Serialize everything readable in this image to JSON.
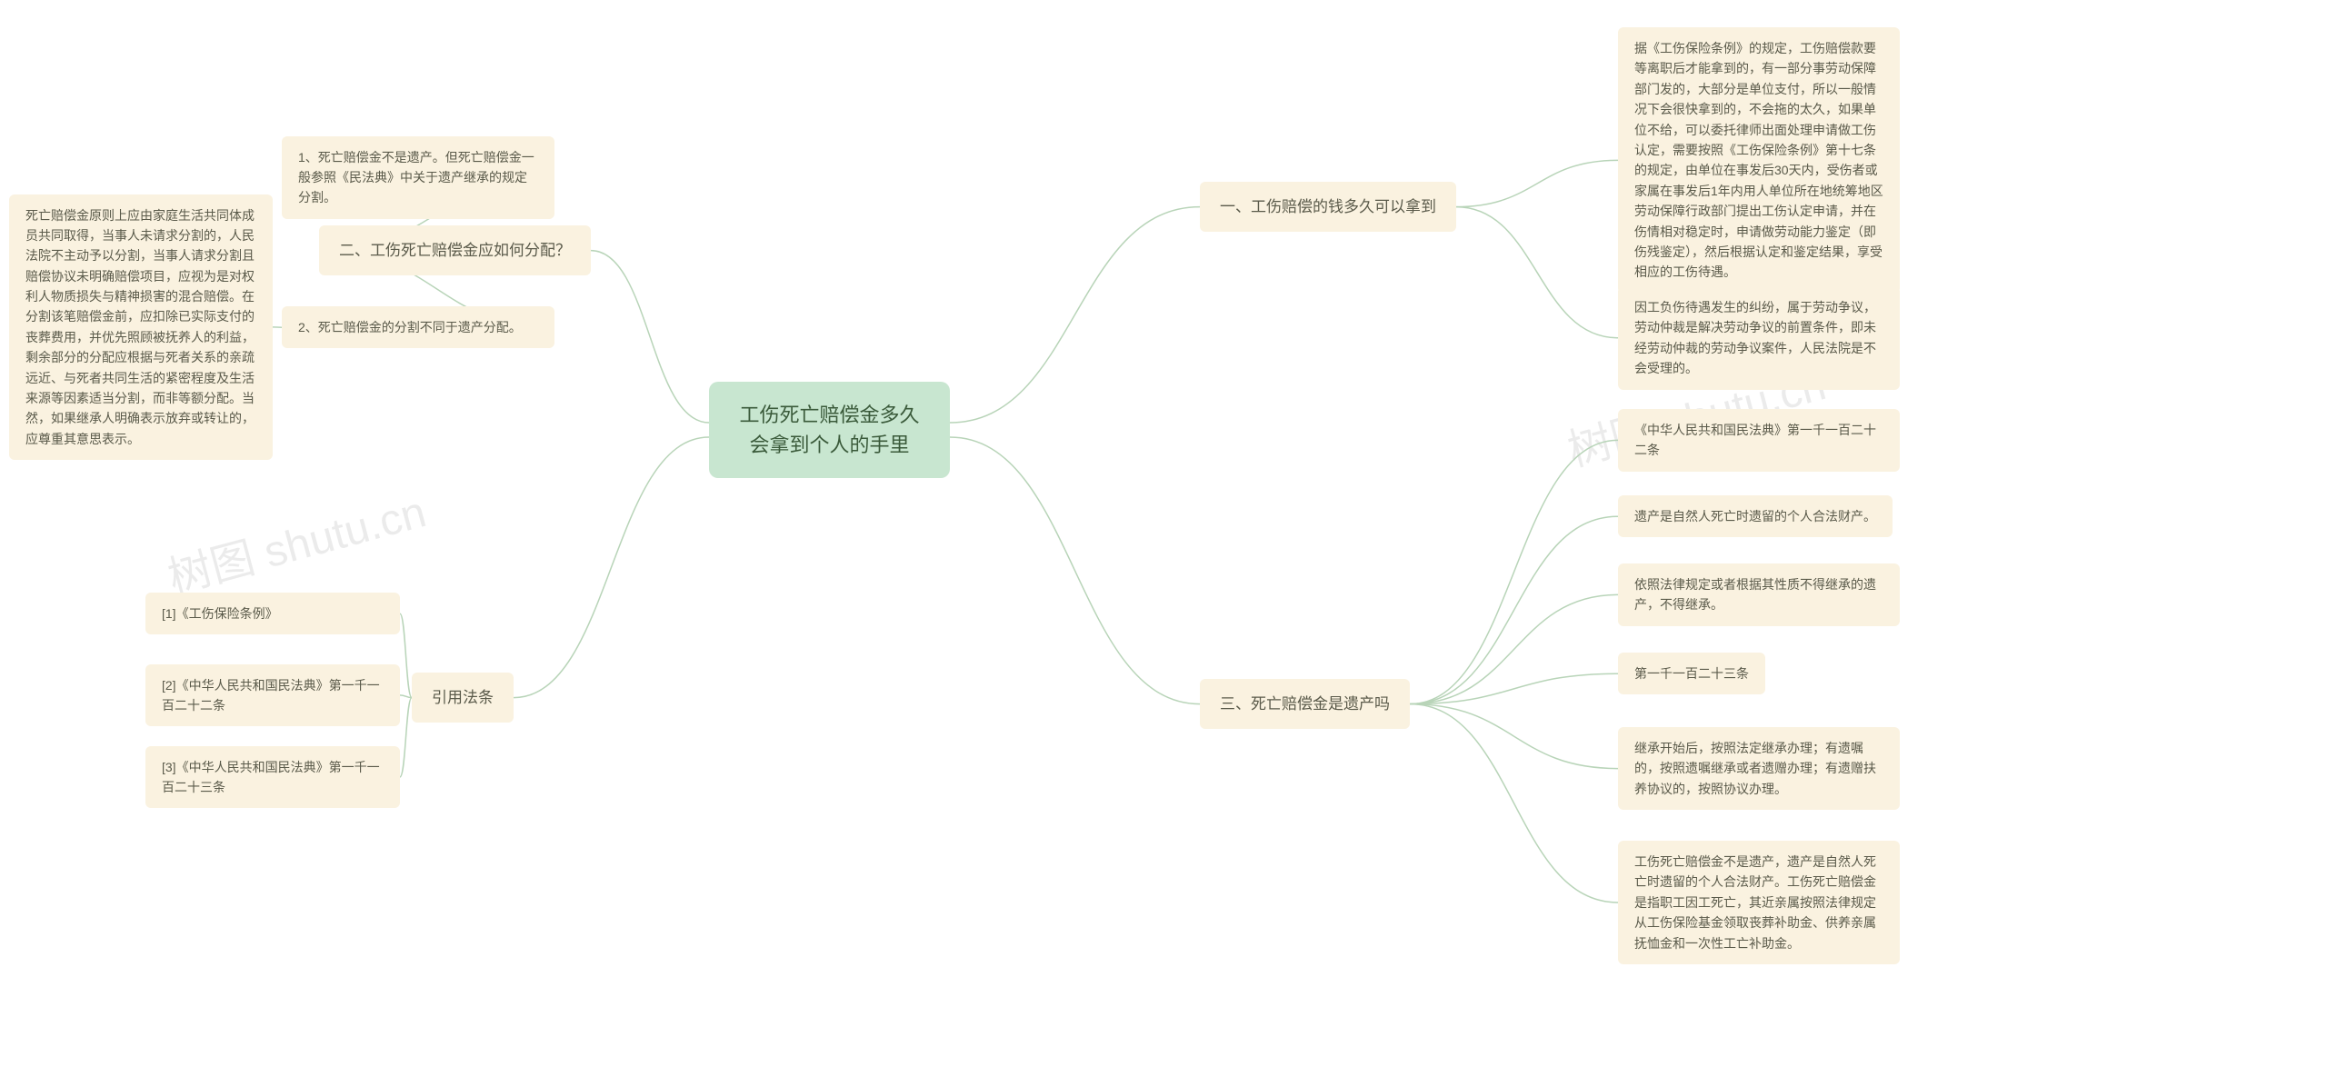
{
  "root": "工伤死亡赔偿金多久会拿到个人的手里",
  "branch1": {
    "title": "一、工伤赔偿的钱多久可以拿到",
    "leaf1": "据《工伤保险条例》的规定，工伤赔偿款要等离职后才能拿到的，有一部分事劳动保障部门发的，大部分是单位支付，所以一般情况下会很快拿到的，不会拖的太久，如果单位不给，可以委托律师出面处理申请做工伤认定，需要按照《工伤保险条例》第十七条的规定，由单位在事发后30天内，受伤者或家属在事发后1年内用人单位所在地统筹地区劳动保障行政部门提出工伤认定申请，并在伤情相对稳定时，申请做劳动能力鉴定（即伤残鉴定），然后根据认定和鉴定结果，享受相应的工伤待遇。",
    "leaf2": "因工负伤待遇发生的纠纷，属于劳动争议，劳动仲裁是解决劳动争议的前置条件，即未经劳动仲裁的劳动争议案件，人民法院是不会受理的。"
  },
  "branch2": {
    "title": "二、工伤死亡赔偿金应如何分配？",
    "leaf1": "1、死亡赔偿金不是遗产。但死亡赔偿金一般参照《民法典》中关于遗产继承的规定分割。",
    "leaf2": "2、死亡赔偿金的分割不同于遗产分配。",
    "leaf2detail": "死亡赔偿金原则上应由家庭生活共同体成员共同取得，当事人未请求分割的，人民法院不主动予以分割，当事人请求分割且赔偿协议未明确赔偿项目，应视为是对权利人物质损失与精神损害的混合赔偿。在分割该笔赔偿金前，应扣除已实际支付的丧葬费用，并优先照顾被抚养人的利益，剩余部分的分配应根据与死者关系的亲疏远近、与死者共同生活的紧密程度及生活来源等因素适当分割，而非等额分配。当然，如果继承人明确表示放弃或转让的，应尊重其意思表示。"
  },
  "branch3": {
    "title": "三、死亡赔偿金是遗产吗",
    "leaf1": "《中华人民共和国民法典》第一千一百二十二条",
    "leaf2": "遗产是自然人死亡时遗留的个人合法财产。",
    "leaf3": "依照法律规定或者根据其性质不得继承的遗产，不得继承。",
    "leaf4": "第一千一百二十三条",
    "leaf5": "继承开始后，按照法定继承办理；有遗嘱的，按照遗嘱继承或者遗赠办理；有遗赠扶养协议的，按照协议办理。",
    "leaf6": "工伤死亡赔偿金不是遗产，遗产是自然人死亡时遗留的个人合法财产。工伤死亡赔偿金是指职工因工死亡，其近亲属按照法律规定从工伤保险基金领取丧葬补助金、供养亲属抚恤金和一次性工亡补助金。"
  },
  "branch4": {
    "title": "引用法条",
    "leaf1": "[1]《工伤保险条例》",
    "leaf2": "[2]《中华人民共和国民法典》第一千一百二十二条",
    "leaf3": "[3]《中华人民共和国民法典》第一千一百二十三条"
  },
  "watermarks": [
    "树图 shutu.cn",
    "树图 shutu.cn"
  ],
  "colors": {
    "root_bg": "#c8e6d0",
    "node_bg": "#faf2e0",
    "connector": "#b8d4b8",
    "text": "#5a5a4a",
    "watermark": "rgba(0,0,0,0.08)"
  }
}
